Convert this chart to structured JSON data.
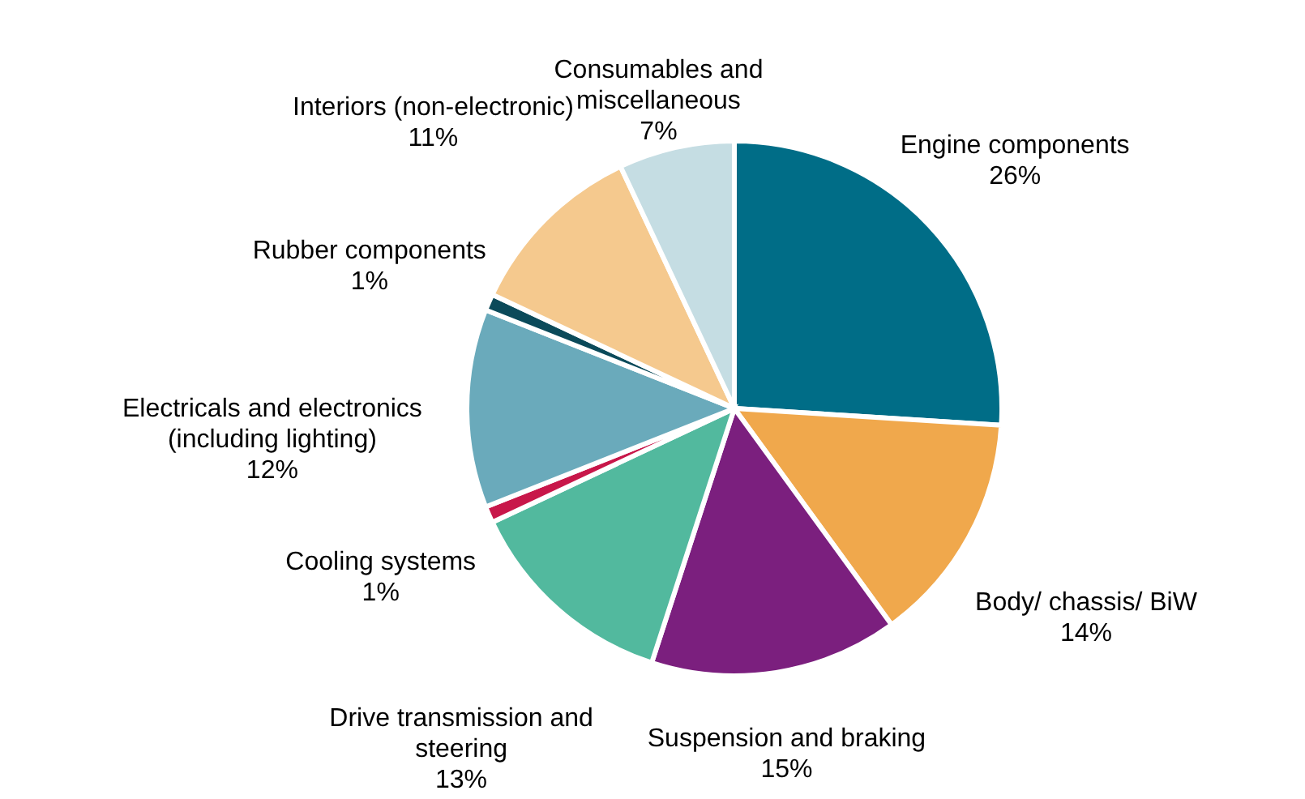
{
  "chart_data": {
    "type": "pie",
    "categories": [
      "Engine components",
      "Body/ chassis/ BiW",
      "Suspension and braking",
      "Drive transmission and steering",
      "Cooling systems",
      "Electricals and electronics (including lighting)",
      "Rubber components",
      "Interiors (non-electronic)",
      "Consumables and miscellaneous"
    ],
    "values": [
      26,
      14,
      15,
      13,
      1,
      12,
      1,
      11,
      7
    ],
    "value_labels": [
      "26%",
      "14%",
      "15%",
      "13%",
      "1%",
      "12%",
      "1%",
      "11%",
      "7%"
    ],
    "colors": [
      "#006d87",
      "#f0a84c",
      "#7b1f7e",
      "#52b99e",
      "#c8174a",
      "#6aaabb",
      "#0b4a5a",
      "#f5c98e",
      "#c5dde3"
    ]
  }
}
